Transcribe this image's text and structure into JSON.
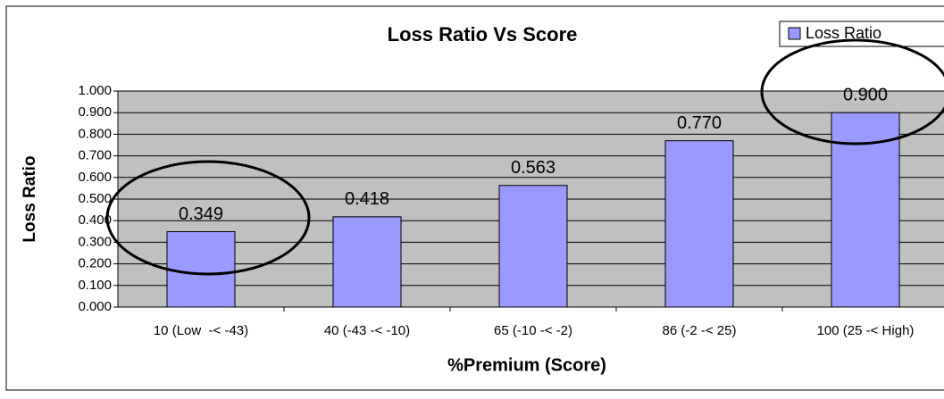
{
  "chart_data": {
    "type": "bar",
    "title": "Loss Ratio Vs Score",
    "x_label": "%Premium (Score)",
    "y_label": "Loss Ratio",
    "categories": [
      "10 (Low  -< -43)",
      "40 (-43 -< -10)",
      "65 (-10 -< -2)",
      "86 (-2 -< 25)",
      "100 (25 -< High)"
    ],
    "series": [
      {
        "name": "Loss Ratio",
        "color": "#9999ff",
        "values": [
          0.349,
          0.418,
          0.563,
          0.77,
          0.9
        ],
        "value_labels": [
          "0.349",
          "0.418",
          "0.563",
          "0.770",
          "0.900"
        ]
      }
    ],
    "ylim": [
      0,
      1
    ],
    "yticks": [
      {
        "value": 0,
        "label": "0.000"
      },
      {
        "value": 0.1,
        "label": "0.100"
      },
      {
        "value": 0.2,
        "label": "0.200"
      },
      {
        "value": 0.3,
        "label": "0.300"
      },
      {
        "value": 0.4,
        "label": "0.400"
      },
      {
        "value": 0.5,
        "label": "0.500"
      },
      {
        "value": 0.6,
        "label": "0.600"
      },
      {
        "value": 0.7,
        "label": "0.700"
      },
      {
        "value": 0.8,
        "label": "0.800"
      },
      {
        "value": 0.9,
        "label": "0.900"
      },
      {
        "value": 1,
        "label": "1.000"
      }
    ],
    "grid": true,
    "legend": "top-right"
  }
}
